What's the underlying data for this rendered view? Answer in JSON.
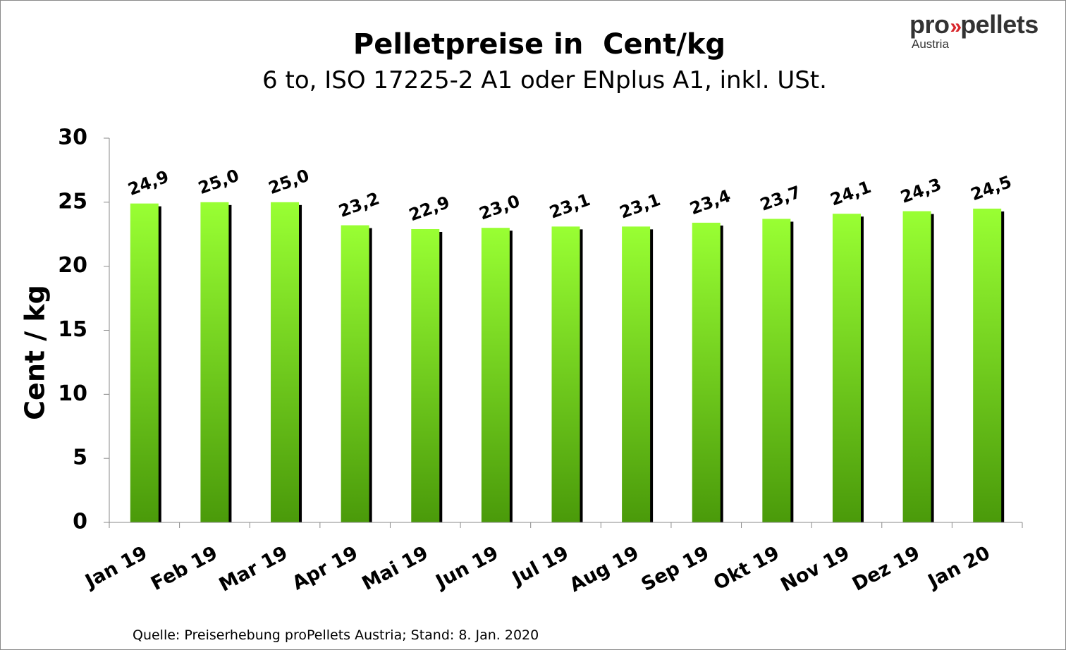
{
  "chart_data": {
    "type": "bar",
    "title": "Pelletpreise in  Cent/kg",
    "subtitle": "6 to, ISO 17225-2 A1 oder ENplus A1, inkl. USt.",
    "xlabel": "",
    "ylabel": "Cent / kg",
    "ylim": [
      0,
      30
    ],
    "yticks": [
      0,
      5,
      10,
      15,
      20,
      25,
      30
    ],
    "categories": [
      "Jan 19",
      "Feb 19",
      "Mar 19",
      "Apr 19",
      "Mai 19",
      "Jun 19",
      "Jul 19",
      "Aug 19",
      "Sep 19",
      "Okt 19",
      "Nov 19",
      "Dez 19",
      "Jan 20"
    ],
    "values": [
      24.9,
      25.0,
      25.0,
      23.2,
      22.9,
      23.0,
      23.1,
      23.1,
      23.4,
      23.7,
      24.1,
      24.3,
      24.5
    ],
    "data_labels": [
      "24,9",
      "25,0",
      "25,0",
      "23,2",
      "22,9",
      "23,0",
      "23,1",
      "23,1",
      "23,4",
      "23,7",
      "24,1",
      "24,3",
      "24,5"
    ],
    "grid": false,
    "legend": "none",
    "colors": {
      "bar_top": "#99ff33",
      "bar_bottom": "#4a9a0a",
      "shadow": "#000000"
    }
  },
  "logo": {
    "text_left": "pro",
    "chevrons": "»",
    "text_right": "pellets",
    "sub": "Austria"
  },
  "footer": {
    "source": "Quelle: Preiserhebung proPellets Austria; Stand: 8. Jan. 2020"
  }
}
